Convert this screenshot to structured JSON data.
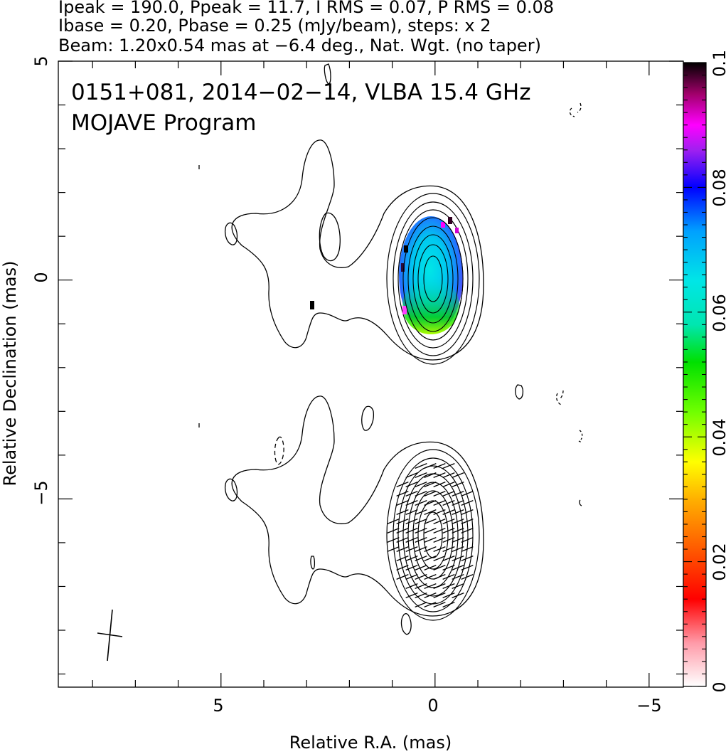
{
  "header": {
    "line1": "Ipeak = 190.0, Ppeak = 11.7, I RMS = 0.07, P RMS = 0.08",
    "line2": "Ibase = 0.20, Pbase = 0.25 (mJy/beam), steps: x 2",
    "line3": "Beam: 1.20x0.54 mas at −6.4 deg., Nat. Wgt. (no taper)"
  },
  "panel": {
    "title_line1": "0151+081, 2014−02−14, VLBA 15.4 GHz",
    "title_line2": "MOJAVE Program"
  },
  "chart_data": {
    "type": "contour",
    "xlabel": "Relative R.A. (mas)",
    "ylabel": "Relative Declination (mas)",
    "xlim": [
      8.8,
      -5.8
    ],
    "ylim": [
      -9.3,
      5
    ],
    "x_reversed": true,
    "x_ticks": [
      5,
      0,
      -5
    ],
    "x_tick_labels": [
      "5",
      "0",
      "−5"
    ],
    "y_ticks": [
      5,
      0,
      -5
    ],
    "y_tick_labels": [
      "5",
      "0",
      "−5"
    ],
    "colorbar": {
      "range": [
        0,
        0.1
      ],
      "ticks": [
        0,
        0.02,
        0.04,
        0.06,
        0.08,
        0.1
      ],
      "tick_labels": [
        "0",
        "0.02",
        "0.04",
        "0.06",
        "0.08",
        "0.1"
      ],
      "colormap": "rainbow"
    },
    "source": "0151+081",
    "date": "2014-02-14",
    "frequency_ghz": 15.4,
    "ipeak_mjy_per_beam": 190.0,
    "ppeak_mjy_per_beam": 11.7,
    "i_rms": 0.07,
    "p_rms": 0.08,
    "ibase": 0.2,
    "pbase": 0.25,
    "contour_step": "x 2",
    "beam": {
      "major_mas": 1.2,
      "minor_mas": 0.54,
      "pa_deg": -6.4
    },
    "panels": [
      {
        "name": "fractional-polarization",
        "center": [
          0,
          0
        ]
      },
      {
        "name": "evpa-vectors",
        "center": [
          0,
          -6
        ]
      }
    ]
  }
}
